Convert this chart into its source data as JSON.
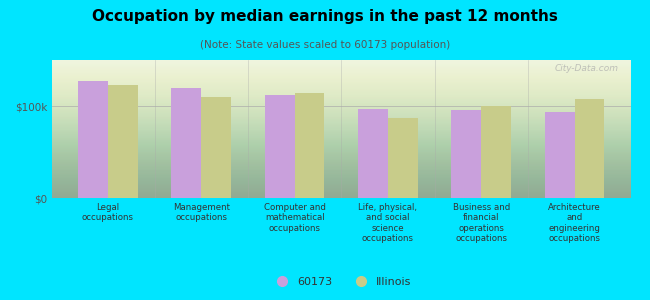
{
  "title": "Occupation by median earnings in the past 12 months",
  "subtitle": "(Note: State values scaled to 60173 population)",
  "categories": [
    "Legal\noccupations",
    "Management\noccupations",
    "Computer and\nmathematical\noccupations",
    "Life, physical,\nand social\nscience\noccupations",
    "Business and\nfinancial\noperations\noccupations",
    "Architecture\nand\nengineering\noccupations"
  ],
  "values_60173": [
    127000,
    120000,
    112000,
    97000,
    96000,
    94000
  ],
  "values_illinois": [
    123000,
    110000,
    114000,
    87000,
    100000,
    108000
  ],
  "color_60173": "#c9a0dc",
  "color_illinois": "#c8cc8a",
  "background_outer": "#00e5ff",
  "ylim": [
    0,
    150000
  ],
  "yticks": [
    0,
    100000
  ],
  "ytick_labels": [
    "$0",
    "$100k"
  ],
  "legend_label_1": "60173",
  "legend_label_2": "Illinois",
  "watermark": "City-Data.com"
}
